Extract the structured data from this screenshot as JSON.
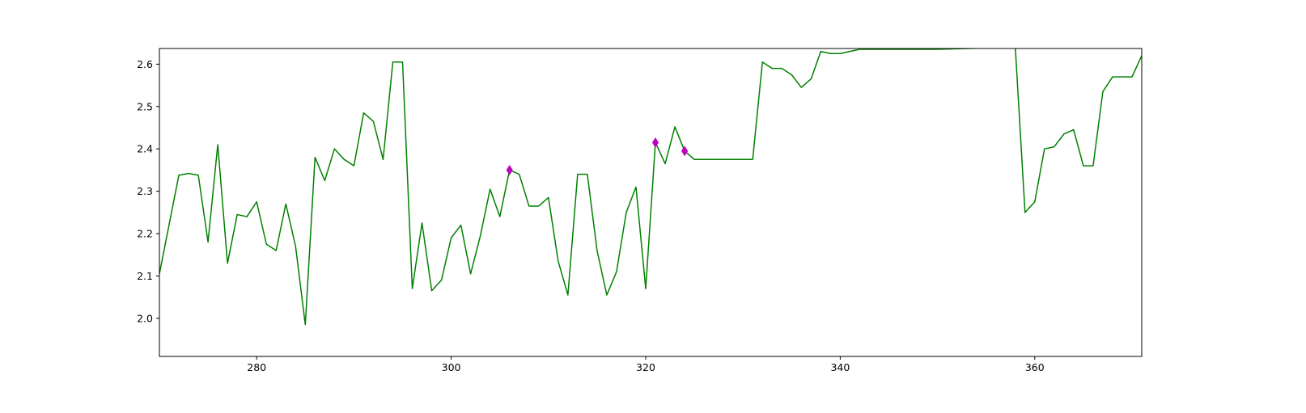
{
  "chart_data": {
    "type": "line",
    "title": "",
    "xlabel": "",
    "ylabel": "",
    "xlim": [
      270,
      371
    ],
    "ylim": [
      1.91,
      2.637
    ],
    "xticks": [
      280,
      300,
      320,
      340,
      360
    ],
    "xtick_labels": [
      "280",
      "300",
      "320",
      "340",
      "360"
    ],
    "yticks": [
      2.0,
      2.1,
      2.2,
      2.3,
      2.4,
      2.5,
      2.6
    ],
    "ytick_labels": [
      "2.0",
      "2.1",
      "2.2",
      "2.3",
      "2.4",
      "2.5",
      "2.6"
    ],
    "grid": false,
    "series": [
      {
        "color": "#008000",
        "style": "line",
        "x": [
          270,
          272,
          273,
          274,
          275,
          276,
          277,
          278,
          279,
          280,
          281,
          282,
          283,
          284,
          285,
          286,
          287,
          288,
          289,
          290,
          291,
          292,
          293,
          294,
          295,
          296,
          297,
          298,
          299,
          300,
          301,
          302,
          303,
          304,
          305,
          306,
          307,
          308,
          309,
          310,
          311,
          312,
          313,
          314,
          315,
          316,
          317,
          318,
          319,
          320,
          321,
          322,
          323,
          324,
          325,
          326,
          327,
          328,
          329,
          330,
          331,
          332,
          333,
          334,
          335,
          336,
          337,
          338,
          339,
          340,
          341,
          342,
          343,
          344,
          345,
          346,
          347,
          348,
          349,
          350,
          358,
          359,
          360,
          361,
          362,
          363,
          364,
          365,
          366,
          367,
          368,
          369,
          370,
          371
        ],
        "y": [
          2.105,
          2.338,
          2.342,
          2.338,
          2.18,
          2.41,
          2.13,
          2.245,
          2.24,
          2.275,
          2.175,
          2.16,
          2.27,
          2.17,
          1.985,
          2.38,
          2.325,
          2.4,
          2.375,
          2.36,
          2.485,
          2.465,
          2.375,
          2.605,
          2.605,
          2.07,
          2.225,
          2.065,
          2.09,
          2.19,
          2.22,
          2.105,
          2.195,
          2.305,
          2.24,
          2.35,
          2.34,
          2.265,
          2.265,
          2.285,
          2.135,
          2.055,
          2.34,
          2.34,
          2.16,
          2.055,
          2.11,
          2.25,
          2.31,
          2.07,
          2.415,
          2.365,
          2.452,
          2.395,
          2.375,
          2.375,
          2.375,
          2.375,
          2.375,
          2.375,
          2.375,
          2.605,
          2.59,
          2.59,
          2.575,
          2.545,
          2.565,
          2.63,
          2.625,
          2.625,
          2.63,
          2.635,
          2.635,
          2.635,
          2.635,
          2.635,
          2.635,
          2.635,
          2.635,
          2.635,
          2.64,
          2.25,
          2.275,
          2.4,
          2.405,
          2.435,
          2.445,
          2.36,
          2.36,
          2.535,
          2.57,
          2.57,
          2.57,
          2.62
        ]
      },
      {
        "color": "#BF00BF",
        "style": "markers",
        "marker": "diamond",
        "x": [
          306,
          321,
          324
        ],
        "y": [
          2.35,
          2.415,
          2.395
        ]
      }
    ]
  }
}
